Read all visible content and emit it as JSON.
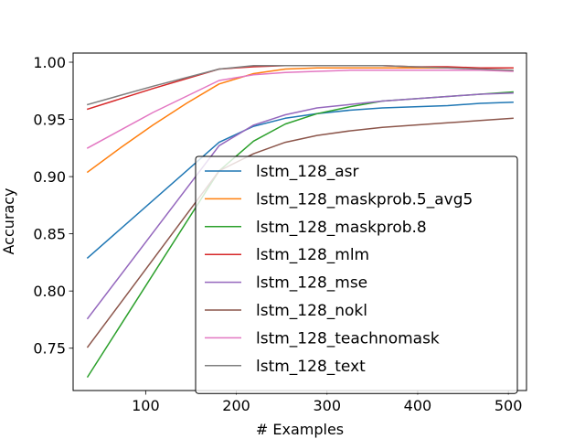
{
  "chart_data": {
    "type": "line",
    "xlabel": "# Examples",
    "ylabel": "Accuracy",
    "xlim": [
      20,
      520
    ],
    "ylim": [
      0.713,
      1.008
    ],
    "xticks": [
      100,
      200,
      300,
      400,
      500
    ],
    "yticks": [
      0.75,
      0.8,
      0.85,
      0.9,
      0.95,
      1.0
    ],
    "ytick_labels": [
      "0.75",
      "0.80",
      "0.85",
      "0.90",
      "0.95",
      "1.00"
    ],
    "grid": false,
    "legend_position": "lower right",
    "series": [
      {
        "name": "lstm_128_asr",
        "color": "#1f77b4",
        "x": [
          36,
          181,
          219,
          254,
          289,
          325,
          361,
          397,
          433,
          469,
          505
        ],
        "y": [
          0.829,
          0.93,
          0.944,
          0.951,
          0.955,
          0.958,
          0.96,
          0.961,
          0.962,
          0.964,
          0.965
        ]
      },
      {
        "name": "lstm_128_maskprob.5_avg5",
        "color": "#ff7f0e",
        "x": [
          36,
          72,
          108,
          145,
          181,
          219,
          254,
          289,
          325,
          361,
          397,
          433,
          469,
          505
        ],
        "y": [
          0.904,
          0.925,
          0.945,
          0.964,
          0.981,
          0.99,
          0.994,
          0.995,
          0.995,
          0.995,
          0.995,
          0.995,
          0.995,
          0.995
        ]
      },
      {
        "name": "lstm_128_maskprob.8",
        "color": "#2ca02c",
        "x": [
          36,
          181,
          219,
          254,
          289,
          325,
          361,
          397,
          433,
          469,
          505
        ],
        "y": [
          0.725,
          0.905,
          0.931,
          0.946,
          0.955,
          0.961,
          0.966,
          0.968,
          0.97,
          0.972,
          0.974
        ]
      },
      {
        "name": "lstm_128_mlm",
        "color": "#d62728",
        "x": [
          36,
          108,
          181,
          219,
          254,
          289,
          325,
          361,
          397,
          433,
          469,
          505
        ],
        "y": [
          0.959,
          0.977,
          0.994,
          0.996,
          0.997,
          0.997,
          0.997,
          0.997,
          0.996,
          0.996,
          0.995,
          0.995
        ]
      },
      {
        "name": "lstm_128_mse",
        "color": "#9467bd",
        "x": [
          36,
          181,
          219,
          254,
          289,
          325,
          361,
          397,
          433,
          469,
          505
        ],
        "y": [
          0.776,
          0.927,
          0.945,
          0.954,
          0.96,
          0.963,
          0.966,
          0.968,
          0.97,
          0.972,
          0.973
        ]
      },
      {
        "name": "lstm_128_nokl",
        "color": "#8c564b",
        "x": [
          36,
          181,
          219,
          254,
          289,
          325,
          361,
          397,
          433,
          469,
          505
        ],
        "y": [
          0.751,
          0.905,
          0.92,
          0.93,
          0.936,
          0.94,
          0.943,
          0.945,
          0.947,
          0.949,
          0.951
        ]
      },
      {
        "name": "lstm_128_teachnomask",
        "color": "#e377c2",
        "x": [
          36,
          108,
          181,
          219,
          254,
          289,
          325,
          361,
          397,
          433,
          469,
          505
        ],
        "y": [
          0.925,
          0.956,
          0.984,
          0.989,
          0.991,
          0.992,
          0.993,
          0.993,
          0.993,
          0.993,
          0.993,
          0.992
        ]
      },
      {
        "name": "lstm_128_text",
        "color": "#7f7f7f",
        "x": [
          36,
          108,
          181,
          219,
          254,
          289,
          325,
          361,
          397,
          433,
          469,
          505
        ],
        "y": [
          0.963,
          0.979,
          0.994,
          0.997,
          0.997,
          0.997,
          0.997,
          0.997,
          0.996,
          0.995,
          0.994,
          0.993
        ]
      }
    ]
  }
}
